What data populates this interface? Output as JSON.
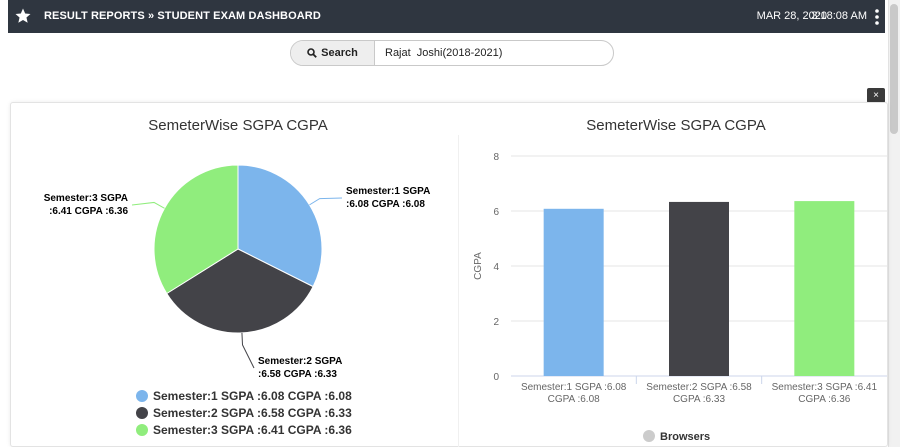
{
  "header": {
    "breadcrumb": "RESULT REPORTS » STUDENT EXAM DASHBOARD",
    "date": "MAR 28, 2020",
    "time": "3:18:08 AM",
    "star_icon": "star-icon",
    "menu_icon": "kebab-menu-icon"
  },
  "search": {
    "button_label": "Search",
    "value": "Rajat  Joshi(2018-2021)",
    "icon": "search-icon"
  },
  "close_label": "×",
  "colors": {
    "sem1": "#7cb5ec",
    "sem2": "#434348",
    "sem3": "#90ed7d",
    "legend_inactive": "#cccccc"
  },
  "chart_data": [
    {
      "type": "pie",
      "title": "SemeterWise SGPA CGPA",
      "categories": [
        "Semester:1 SGPA :6.08 CGPA :6.08",
        "Semester:2 SGPA :6.58 CGPA :6.33",
        "Semester:3 SGPA :6.41 CGPA :6.36"
      ],
      "values": [
        6.08,
        6.33,
        6.36
      ],
      "data_labels": [
        [
          "Semester:1 SGPA",
          ":6.08 CGPA :6.08"
        ],
        [
          "Semester:2 SGPA",
          ":6.58 CGPA :6.33"
        ],
        [
          "Semester:3 SGPA",
          ":6.41 CGPA :6.36"
        ]
      ],
      "legend": [
        "Semester:1 SGPA :6.08 CGPA :6.08",
        "Semester:2 SGPA :6.58 CGPA :6.33",
        "Semester:3 SGPA :6.41 CGPA :6.36"
      ],
      "legend_placement": "bottom"
    },
    {
      "type": "bar",
      "title": "SemeterWise SGPA CGPA",
      "categories": [
        [
          "Semester:1 SGPA :6.08",
          "CGPA :6.08"
        ],
        [
          "Semester:2 SGPA :6.58",
          "CGPA :6.33"
        ],
        [
          "Semester:3 SGPA :6.41",
          "CGPA :6.36"
        ]
      ],
      "values": [
        6.08,
        6.33,
        6.36
      ],
      "ylabel": "CGPA",
      "yticks": [
        0,
        2,
        4,
        6,
        8
      ],
      "ylim": [
        0,
        8
      ],
      "grid": true,
      "legend": [
        "Browsers"
      ],
      "legend_placement": "bottom"
    }
  ]
}
